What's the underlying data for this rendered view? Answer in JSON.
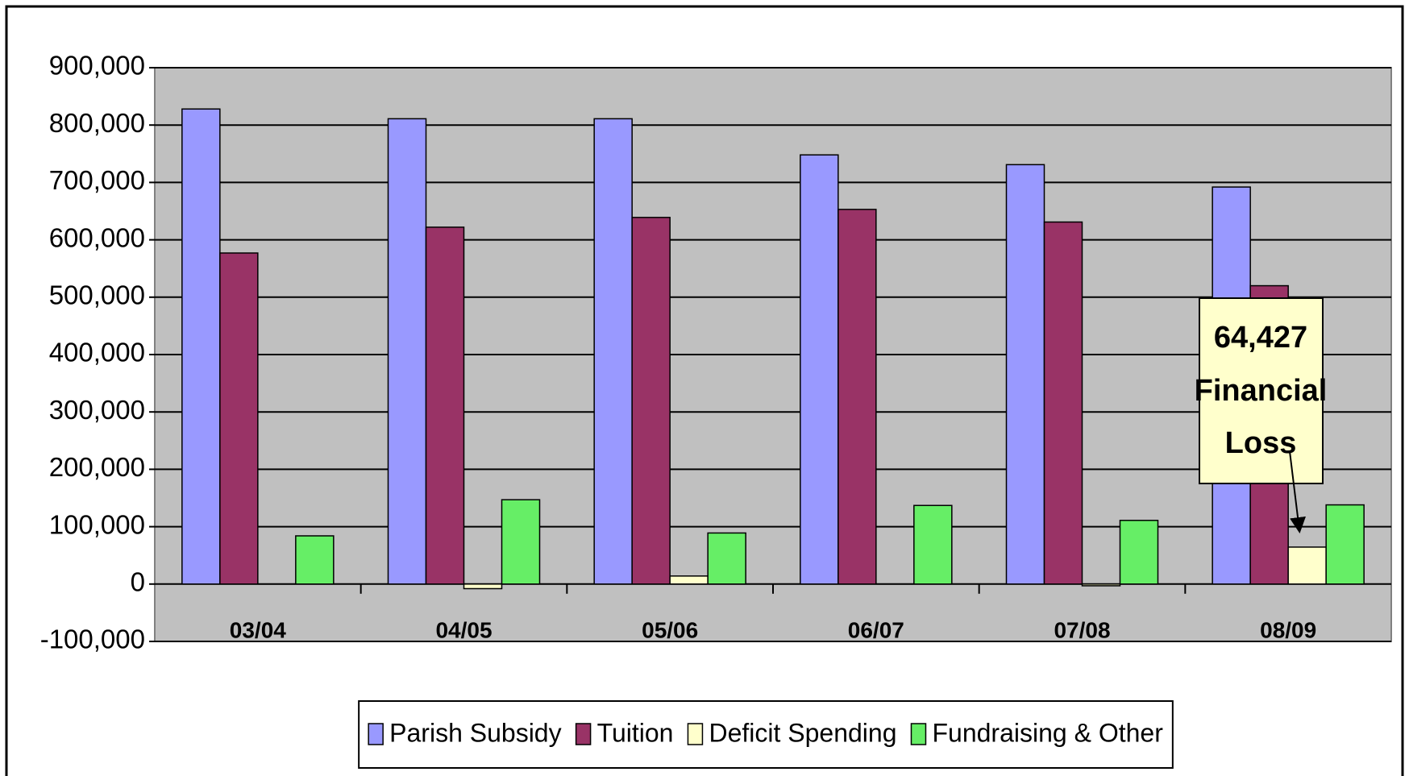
{
  "chart_data": {
    "type": "bar",
    "categories": [
      "03/04",
      "04/05",
      "05/06",
      "06/07",
      "07/08",
      "08/09"
    ],
    "series": [
      {
        "name": "Parish Subsidy",
        "color": "#9999ff",
        "values": [
          828000,
          811000,
          811000,
          748000,
          731000,
          692000
        ]
      },
      {
        "name": "Tuition",
        "color": "#993366",
        "values": [
          577000,
          622000,
          639000,
          653000,
          631000,
          520000
        ]
      },
      {
        "name": "Deficit Spending",
        "color": "#ffffcc",
        "values": [
          0,
          -8000,
          14000,
          0,
          -3000,
          64427
        ]
      },
      {
        "name": "Fundraising & Other",
        "color": "#66ee66",
        "values": [
          84000,
          147000,
          89000,
          137000,
          111000,
          138000
        ]
      }
    ],
    "ylim": [
      -100000,
      900000
    ],
    "yticks": [
      {
        "value": -100000,
        "label": "-100,000"
      },
      0,
      {
        "value": 100000,
        "label": "100,000"
      },
      {
        "value": 200000,
        "label": "200,000"
      },
      {
        "value": 300000,
        "label": "300,000"
      },
      {
        "value": 400000,
        "label": "400,000"
      },
      {
        "value": 500000,
        "label": "500,000"
      },
      {
        "value": 600000,
        "label": "600,000"
      },
      {
        "value": 700000,
        "label": "700,000"
      },
      {
        "value": 800000,
        "label": "800,000"
      },
      {
        "value": 900000,
        "label": "900,000"
      }
    ],
    "grid": true,
    "legend": "bottom",
    "annotation": [
      "64,427",
      "Financial",
      "Loss"
    ]
  }
}
